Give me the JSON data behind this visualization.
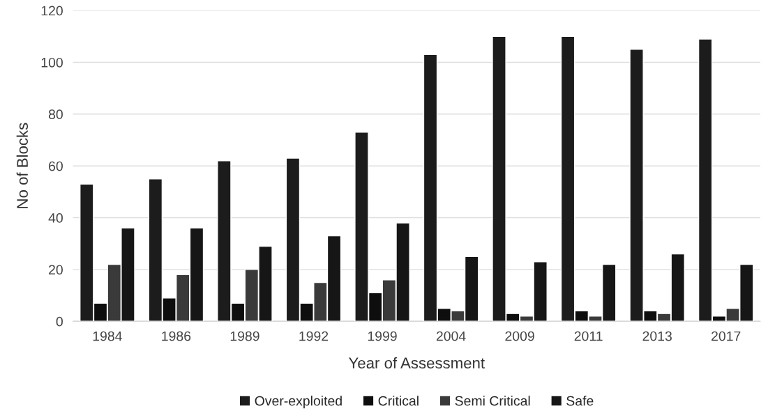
{
  "chart_data": {
    "type": "bar",
    "xlabel": "Year of Assessment",
    "ylabel": "No of Blocks",
    "categories": [
      "1984",
      "1986",
      "1989",
      "1992",
      "1999",
      "2004",
      "2009",
      "2011",
      "2013",
      "2017"
    ],
    "series": [
      {
        "name": "Over-exploited",
        "color": "#1c1c1c",
        "values": [
          53,
          55,
          62,
          63,
          73,
          103,
          110,
          110,
          105,
          109
        ]
      },
      {
        "name": "Critical",
        "color": "#0e0e0e",
        "values": [
          7,
          9,
          7,
          7,
          11,
          5,
          3,
          4,
          4,
          2
        ]
      },
      {
        "name": "Semi Critical",
        "color": "#3a3a3a",
        "values": [
          22,
          18,
          20,
          15,
          16,
          4,
          2,
          2,
          3,
          5
        ]
      },
      {
        "name": "Safe",
        "color": "#161616",
        "values": [
          36,
          36,
          29,
          33,
          38,
          25,
          23,
          22,
          26,
          22
        ]
      }
    ],
    "ylim": [
      0,
      120
    ],
    "yticks": [
      0,
      20,
      40,
      60,
      80,
      100,
      120
    ],
    "grid": "y",
    "legend": "bottom"
  }
}
